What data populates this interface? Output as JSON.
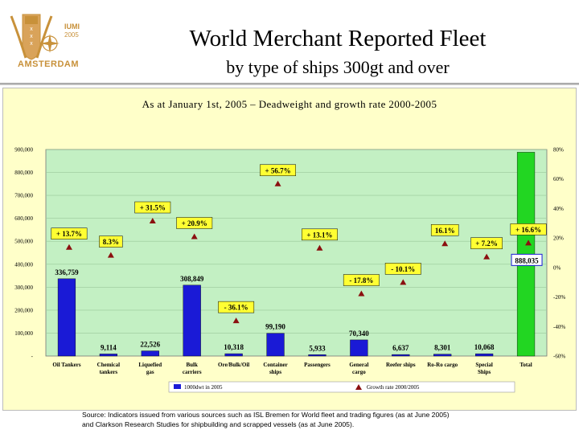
{
  "header": {
    "logo_text": "AMSTERDAM",
    "logo_org": "IUMI",
    "logo_year": "2005",
    "title": "World Merchant Reported Fleet",
    "subtitle": "by type of ships 300gt and over"
  },
  "source_note": {
    "line1": "Source: Indicators issued from various sources such as ISL Bremen for World fleet and trading figures (as at June 2005)",
    "line2": "and Clarkson Research Studies for shipbuilding and scrapped vessels (as at June 2005)."
  },
  "chart_data": {
    "type": "bar",
    "title": "As at January 1st, 2005 – Deadweight and growth rate 2000-2005",
    "categories": [
      "Oil Tankers",
      "Chemical tankers",
      "Liquefied gas",
      "Bulk carriers",
      "Ore/Bulk/Oil",
      "Container ships",
      "Passengers",
      "General cargo",
      "Reefer ships",
      "Ro-Ro cargo",
      "Special Ships",
      "Total"
    ],
    "left_axis": {
      "min": 0,
      "max": 900000,
      "ticks": [
        "-",
        "100,000",
        "200,000",
        "300,000",
        "400,000",
        "500,000",
        "600,000",
        "700,000",
        "800,000",
        "900,000"
      ]
    },
    "right_axis": {
      "min": -60,
      "max": 80,
      "ticks": [
        "-60%",
        "-40%",
        "-20%",
        "0%",
        "20%",
        "40%",
        "60%",
        "80%"
      ]
    },
    "series": [
      {
        "name": "1000dwt in 2005",
        "kind": "bar",
        "color": "#1a1ad6",
        "values": [
          336759,
          9114,
          22526,
          308849,
          10318,
          99190,
          5933,
          70340,
          6637,
          8301,
          10068,
          888035
        ],
        "labels": [
          "336,759",
          "9,114",
          "22,526",
          "308,849",
          "10,318",
          "99,190",
          "5,933",
          "70,340",
          "6,637",
          "8,301",
          "10,068",
          "888,035"
        ]
      },
      {
        "name": "Growth rate 2000/2005",
        "kind": "marker",
        "color": "#8b1010",
        "values": [
          13.7,
          8.3,
          31.5,
          20.9,
          -36.1,
          56.7,
          13.1,
          -17.8,
          -10.1,
          16.1,
          7.2,
          16.6
        ],
        "labels": [
          "+ 13.7%",
          "8.3%",
          "+ 31.5%",
          "+ 20.9%",
          "- 36.1%",
          "+ 56.7%",
          "+ 13.1%",
          "- 17.8%",
          "- 10.1%",
          "16.1%",
          "+ 7.2%",
          "+ 16.6%"
        ]
      }
    ],
    "total_bar_color": "#22d622",
    "plot_background": "#c3f0c3",
    "legend": [
      "1000dwt in 2005",
      "Growth rate 2000/2005"
    ]
  }
}
